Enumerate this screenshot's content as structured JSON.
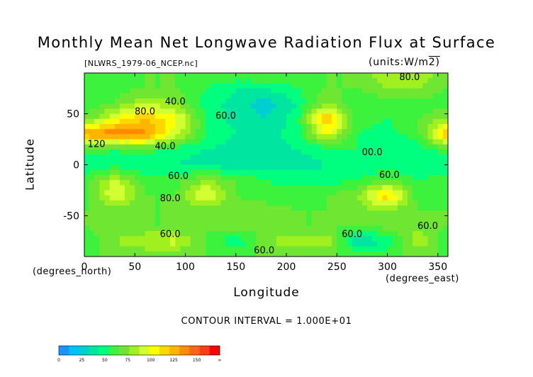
{
  "chart_data": {
    "type": "heatmap",
    "title": "Monthly Mean Net Longwave Radiation Flux at Surface",
    "file_label": "[NLWRS_1979-06_NCEP.nc]",
    "units_label": "(units:W/m^2)",
    "xlabel": "Longitude",
    "ylabel": "Latitude",
    "x_units": "(degrees_east)",
    "y_units": "(degrees_north)",
    "contour_interval": "CONTOUR INTERVAL = 1.000E+01",
    "xlim": [
      0,
      360
    ],
    "ylim": [
      -90,
      90
    ],
    "x_ticks": [
      {
        "value": 0,
        "label": "0"
      },
      {
        "value": 50,
        "label": "50"
      },
      {
        "value": 100,
        "label": "100"
      },
      {
        "value": 150,
        "label": "150"
      },
      {
        "value": 200,
        "label": "200"
      },
      {
        "value": 250,
        "label": "250"
      },
      {
        "value": 300,
        "label": "300"
      },
      {
        "value": 350,
        "label": "350"
      }
    ],
    "y_ticks": [
      {
        "value": 50,
        "label": "50"
      },
      {
        "value": 0,
        "label": "0"
      },
      {
        "value": -50,
        "label": "-50"
      }
    ],
    "contour_labels": [
      {
        "lon": 12,
        "lat": 20,
        "text": "120"
      },
      {
        "lon": 60,
        "lat": 52,
        "text": "80.0"
      },
      {
        "lon": 90,
        "lat": 62,
        "text": "40.0"
      },
      {
        "lon": 140,
        "lat": 48,
        "text": "60.0"
      },
      {
        "lon": 80,
        "lat": 18,
        "text": "40.0"
      },
      {
        "lon": 93,
        "lat": -11,
        "text": "60.0"
      },
      {
        "lon": 85,
        "lat": -33,
        "text": "80.0"
      },
      {
        "lon": 322,
        "lat": 86,
        "text": "80.0"
      },
      {
        "lon": 285,
        "lat": 12,
        "text": "00.0"
      },
      {
        "lon": 302,
        "lat": -10,
        "text": "60.0"
      },
      {
        "lon": 265,
        "lat": -68,
        "text": "60.0"
      },
      {
        "lon": 340,
        "lat": -60,
        "text": "60.0"
      },
      {
        "lon": 178,
        "lat": -84,
        "text": "60.0"
      },
      {
        "lon": 85,
        "lat": -68,
        "text": "60.0"
      }
    ],
    "colorbar": {
      "ticks": [
        "0",
        "25",
        "50",
        "75",
        "100",
        "125",
        "150",
        "∞"
      ],
      "colors": [
        "#1e90ff",
        "#00bfff",
        "#00ced1",
        "#00e5a0",
        "#00ff7f",
        "#3cf23c",
        "#6ee632",
        "#a0f020",
        "#d2ff32",
        "#ffff00",
        "#ffd700",
        "#ffb400",
        "#ff8c00",
        "#ff6414",
        "#ff3c14",
        "#ff0000"
      ]
    },
    "values_lon": [
      0,
      30,
      60,
      90,
      120,
      150,
      180,
      210,
      240,
      270,
      300,
      330,
      360
    ],
    "values_lat": [
      90,
      75,
      60,
      45,
      30,
      15,
      0,
      -15,
      -30,
      -45,
      -60,
      -75,
      -90
    ],
    "values": [
      [
        60,
        60,
        60,
        60,
        60,
        60,
        60,
        60,
        60,
        60,
        80,
        80,
        60
      ],
      [
        60,
        55,
        60,
        60,
        50,
        40,
        40,
        50,
        60,
        60,
        70,
        70,
        60
      ],
      [
        55,
        60,
        80,
        70,
        45,
        35,
        25,
        40,
        70,
        50,
        55,
        55,
        55
      ],
      [
        60,
        90,
        110,
        95,
        50,
        35,
        30,
        45,
        115,
        55,
        50,
        60,
        70
      ],
      [
        120,
        130,
        125,
        85,
        50,
        40,
        35,
        45,
        90,
        50,
        45,
        55,
        120
      ],
      [
        55,
        50,
        55,
        45,
        40,
        35,
        35,
        40,
        45,
        50,
        45,
        45,
        55
      ],
      [
        40,
        45,
        40,
        40,
        35,
        35,
        35,
        35,
        40,
        40,
        45,
        40,
        40
      ],
      [
        55,
        80,
        55,
        55,
        70,
        60,
        50,
        45,
        45,
        50,
        60,
        50,
        55
      ],
      [
        50,
        95,
        60,
        60,
        95,
        60,
        55,
        55,
        60,
        70,
        110,
        55,
        50
      ],
      [
        60,
        60,
        60,
        60,
        65,
        65,
        65,
        60,
        60,
        65,
        70,
        60,
        60
      ],
      [
        60,
        65,
        60,
        60,
        60,
        65,
        60,
        60,
        60,
        60,
        65,
        65,
        60
      ],
      [
        50,
        70,
        80,
        85,
        60,
        40,
        70,
        75,
        80,
        30,
        40,
        80,
        50
      ],
      [
        60,
        60,
        60,
        60,
        60,
        60,
        60,
        60,
        60,
        60,
        60,
        60,
        60
      ]
    ]
  }
}
